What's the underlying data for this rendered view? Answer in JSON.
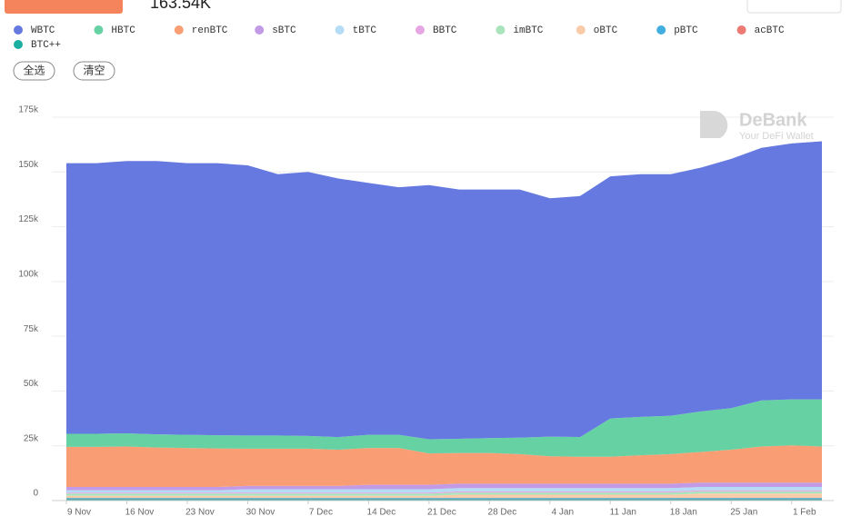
{
  "header": {
    "value": "163.54K"
  },
  "buttons": [
    "全选",
    "清空"
  ],
  "watermark": {
    "brand": "DeBank",
    "tagline": "Your DeFi Wallet"
  },
  "chart_data": {
    "type": "stacked-area",
    "stacking": "bottom-up from the last series",
    "categories": [
      "9 Nov",
      null,
      "16 Nov",
      null,
      "23 Nov",
      null,
      "30 Nov",
      null,
      "7 Dec",
      null,
      "14 Dec",
      null,
      "21 Dec",
      null,
      "28 Dec",
      null,
      "4 Jan",
      null,
      "11 Jan",
      null,
      "18 Jan",
      null,
      "25 Jan",
      null,
      "1 Feb",
      null
    ],
    "ylim": [
      0,
      175000
    ],
    "yticks": [
      0,
      {
        "value": 25000,
        "label": "25k"
      },
      {
        "value": 50000,
        "label": "50k"
      },
      {
        "value": 75000,
        "label": "75k"
      },
      {
        "value": 100000,
        "label": "100k"
      },
      {
        "value": 125000,
        "label": "125k"
      },
      {
        "value": 150000,
        "label": "150k"
      },
      {
        "value": 175000,
        "label": "175k"
      }
    ],
    "grid": true,
    "series": [
      {
        "name": "WBTC",
        "color": "#6579e0",
        "values": [
          123500,
          123500,
          124300,
          124800,
          124000,
          124200,
          123300,
          119300,
          120500,
          118000,
          115000,
          113000,
          116000,
          113800,
          113500,
          113300,
          108800,
          110000,
          110500,
          110800,
          110300,
          111300,
          113800,
          115300,
          116800,
          117800
        ]
      },
      {
        "name": "HBTC",
        "color": "#66d1a2",
        "values": [
          6000,
          6000,
          6000,
          6000,
          6000,
          6000,
          6000,
          6000,
          5800,
          5800,
          6000,
          6000,
          6500,
          6500,
          6800,
          7500,
          9000,
          9000,
          17500,
          17500,
          17500,
          18500,
          19000,
          21000,
          21000,
          21500
        ]
      },
      {
        "name": "renBTC",
        "color": "#f99e74",
        "values": [
          18300,
          18300,
          18500,
          18000,
          17800,
          17600,
          17000,
          17000,
          17000,
          16500,
          16800,
          16800,
          14300,
          14000,
          14000,
          13500,
          12500,
          12300,
          12300,
          13000,
          13500,
          14000,
          15000,
          16500,
          17000,
          16500
        ]
      },
      {
        "name": "sBTC",
        "color": "#c39ae6",
        "values": [
          1500,
          1500,
          1500,
          1500,
          1500,
          1500,
          1500,
          1500,
          1500,
          1500,
          2000,
          2000,
          2000,
          2000,
          2000,
          2000,
          2000,
          2000,
          2000,
          2000,
          2000,
          2000,
          2000,
          2000,
          2000,
          2000
        ]
      },
      {
        "name": "tBTC",
        "color": "#b4dcf4",
        "values": [
          1000,
          1000,
          1000,
          1000,
          1000,
          1000,
          1500,
          1500,
          1500,
          1500,
          1500,
          1500,
          1500,
          1500,
          1500,
          1500,
          1500,
          1500,
          1500,
          1500,
          1500,
          1500,
          1500,
          1500,
          1500,
          1500
        ]
      },
      {
        "name": "BBTC",
        "color": "#e6a5e3",
        "values": [
          500,
          500,
          500,
          500,
          500,
          500,
          500,
          500,
          500,
          500,
          500,
          500,
          500,
          500,
          500,
          500,
          500,
          500,
          500,
          500,
          500,
          500,
          500,
          500,
          500,
          500
        ]
      },
      {
        "name": "imBTC",
        "color": "#a9e4bc",
        "values": [
          1000,
          1000,
          1000,
          1000,
          1000,
          1000,
          1000,
          1000,
          1000,
          1000,
          1000,
          1000,
          1000,
          1000,
          1000,
          1000,
          1000,
          1000,
          1000,
          1000,
          1000,
          1000,
          1000,
          1000,
          1000,
          1000
        ]
      },
      {
        "name": "oBTC",
        "color": "#f9cba8",
        "values": [
          1000,
          1000,
          1000,
          1000,
          1000,
          1000,
          1000,
          1000,
          1000,
          1000,
          1000,
          1000,
          1000,
          1500,
          1500,
          1500,
          1500,
          1500,
          1500,
          1500,
          1500,
          2000,
          2000,
          2000,
          2000,
          2000
        ]
      },
      {
        "name": "pBTC",
        "color": "#42aee0",
        "values": [
          400,
          400,
          400,
          400,
          400,
          400,
          400,
          400,
          400,
          400,
          400,
          400,
          400,
          400,
          400,
          400,
          400,
          400,
          400,
          400,
          400,
          400,
          400,
          400,
          400,
          400
        ]
      },
      {
        "name": "acBTC",
        "color": "#ec7a74",
        "values": [
          200,
          200,
          200,
          200,
          200,
          200,
          200,
          200,
          200,
          200,
          200,
          200,
          200,
          200,
          200,
          200,
          200,
          200,
          200,
          200,
          200,
          200,
          200,
          200,
          200,
          200
        ]
      },
      {
        "name": "BTC++",
        "color": "#1baea3",
        "values": [
          600,
          600,
          600,
          600,
          600,
          600,
          600,
          600,
          600,
          600,
          600,
          600,
          600,
          600,
          600,
          600,
          600,
          600,
          600,
          600,
          600,
          600,
          600,
          600,
          600,
          600
        ]
      }
    ]
  }
}
